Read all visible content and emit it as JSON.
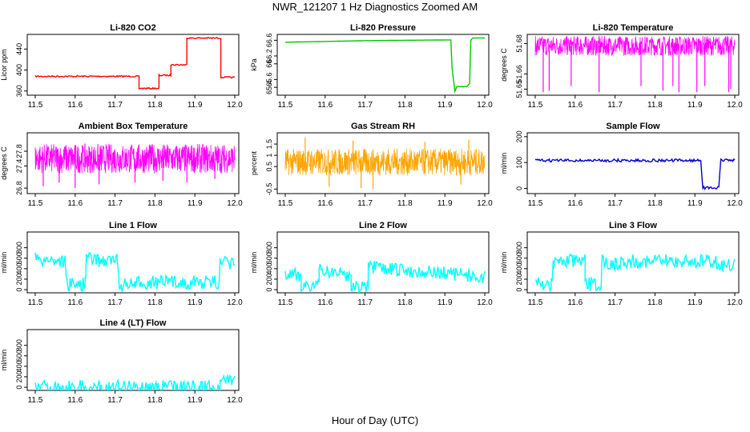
{
  "figure": {
    "title": "NWR_121207  1 Hz Diagnostics Zoomed AM",
    "xlabel": "Hour of Day (UTC)"
  },
  "chart_data": [
    {
      "type": "line",
      "title": "Li-820 CO2",
      "ylabel": "Licor ppm",
      "color": "#ff0000",
      "xlim": [
        11.48,
        12.01
      ],
      "ylim": [
        352,
        468
      ],
      "xticks": [
        11.5,
        11.6,
        11.7,
        11.8,
        11.9,
        12.0
      ],
      "yticks": [
        360,
        400,
        440
      ],
      "series": [
        {
          "x": [
            11.5,
            11.76,
            11.76,
            11.81,
            11.81,
            11.84,
            11.84,
            11.88,
            11.88,
            11.965,
            11.965,
            12.0
          ],
          "y": [
            388,
            388,
            365,
            365,
            390,
            390,
            410,
            410,
            461,
            461,
            386,
            386
          ]
        }
      ]
    },
    {
      "type": "line",
      "title": "Li-820 Pressure",
      "ylabel": "kPa",
      "color": "#00c800",
      "xlim": [
        11.48,
        12.01
      ],
      "ylim": [
        65.2,
        66.75
      ],
      "xticks": [
        11.5,
        11.6,
        11.7,
        11.8,
        11.9,
        12.0
      ],
      "yticks": [
        65.4,
        65.6,
        66.0,
        66.2,
        66.6
      ],
      "series": [
        {
          "x": [
            11.5,
            11.6,
            11.7,
            11.8,
            11.915,
            11.918,
            11.925,
            11.93,
            11.955,
            11.962,
            11.965,
            11.97,
            12.0
          ],
          "y": [
            66.55,
            66.57,
            66.59,
            66.6,
            66.61,
            65.9,
            65.3,
            65.42,
            65.42,
            65.5,
            66.6,
            66.66,
            66.66
          ]
        }
      ]
    },
    {
      "type": "line",
      "title": "Li-820 Temperature",
      "ylabel": "degrees C",
      "color": "#ff00ff",
      "xlim": [
        11.48,
        12.01
      ],
      "ylim": [
        51.646,
        51.686
      ],
      "xticks": [
        11.5,
        11.6,
        11.7,
        11.8,
        11.9,
        12.0
      ],
      "yticks": [
        51.65,
        51.66,
        51.68
      ],
      "band": {
        "low": 51.672,
        "high": 51.685
      },
      "dips": [
        [
          11.52,
          51.648
        ],
        [
          11.535,
          51.649
        ],
        [
          11.59,
          51.652
        ],
        [
          11.66,
          51.648
        ],
        [
          11.765,
          51.652
        ],
        [
          11.82,
          51.649
        ],
        [
          11.845,
          51.652
        ],
        [
          11.86,
          51.648
        ],
        [
          11.905,
          51.648
        ],
        [
          11.925,
          51.652
        ],
        [
          11.985,
          51.648
        ],
        [
          11.99,
          51.65
        ]
      ]
    },
    {
      "type": "line",
      "title": "Ambient Box Temperature",
      "ylabel": "degrees C",
      "color": "#ff00ff",
      "xlim": [
        11.48,
        12.01
      ],
      "ylim": [
        26.65,
        28.3
      ],
      "xticks": [
        11.5,
        11.6,
        11.7,
        11.8,
        11.9,
        12.0
      ],
      "yticks": [
        26.8,
        27.4,
        27.8
      ],
      "band": {
        "low": 27.2,
        "high": 28.0
      },
      "dips": [
        [
          11.52,
          26.85
        ],
        [
          11.56,
          26.95
        ],
        [
          11.6,
          26.8
        ],
        [
          11.66,
          26.9
        ],
        [
          11.75,
          26.95
        ],
        [
          11.82,
          27.0
        ],
        [
          11.88,
          26.95
        ],
        [
          11.95,
          27.05
        ]
      ]
    },
    {
      "type": "line",
      "title": "Gas Stream RH",
      "ylabel": "percent",
      "color": "#ffa500",
      "xlim": [
        11.48,
        12.01
      ],
      "ylim": [
        -0.7,
        2.0
      ],
      "xticks": [
        11.5,
        11.6,
        11.7,
        11.8,
        11.9,
        12.0
      ],
      "yticks": [
        -0.5,
        0.5,
        1.0,
        1.5
      ],
      "band": {
        "low": 0.1,
        "high": 1.3
      },
      "dips": [
        [
          11.55,
          1.8
        ],
        [
          11.61,
          -0.4
        ],
        [
          11.67,
          1.65
        ],
        [
          11.69,
          -0.45
        ],
        [
          11.72,
          -0.5
        ],
        [
          11.85,
          1.6
        ],
        [
          11.96,
          1.7
        ],
        [
          11.94,
          -0.3
        ]
      ]
    },
    {
      "type": "line",
      "title": "Sample Flow",
      "ylabel": "ml/min",
      "color": "#0000cd",
      "xlim": [
        11.48,
        12.01
      ],
      "ylim": [
        -20,
        215
      ],
      "xticks": [
        11.5,
        11.6,
        11.7,
        11.8,
        11.9,
        12.0
      ],
      "yticks": [
        0,
        100,
        200
      ],
      "series": [
        {
          "x": [
            11.5,
            11.915,
            11.92,
            11.96,
            11.965,
            12.0
          ],
          "y": [
            108,
            108,
            2,
            2,
            110,
            110
          ]
        }
      ]
    },
    {
      "type": "line",
      "title": "Line 1 Flow",
      "ylabel": "ml/min",
      "color": "#00ffff",
      "xlim": [
        11.48,
        12.01
      ],
      "ylim": [
        -60,
        1100
      ],
      "xticks": [
        11.5,
        11.6,
        11.7,
        11.8,
        11.9,
        12.0
      ],
      "yticks": [
        0,
        200,
        400,
        600,
        800
      ],
      "series": [
        {
          "x": [
            11.5,
            11.54,
            11.575,
            11.58,
            11.625,
            11.628,
            11.66,
            11.705,
            11.71,
            11.75,
            11.76,
            11.96,
            11.963,
            12.0
          ],
          "y": [
            575,
            575,
            540,
            100,
            100,
            600,
            560,
            560,
            90,
            90,
            140,
            140,
            500,
            500
          ]
        }
      ]
    },
    {
      "type": "line",
      "title": "Line 2 Flow",
      "ylabel": "ml/min",
      "color": "#00ffff",
      "xlim": [
        11.48,
        12.01
      ],
      "ylim": [
        -60,
        1100
      ],
      "xticks": [
        11.5,
        11.6,
        11.7,
        11.8,
        11.9,
        12.0
      ],
      "yticks": [
        0,
        200,
        400,
        600,
        800
      ],
      "series": [
        {
          "x": [
            11.5,
            11.54,
            11.54,
            11.585,
            11.585,
            11.665,
            11.665,
            11.708,
            11.708,
            11.965,
            11.965,
            12.0
          ],
          "y": [
            270,
            270,
            80,
            80,
            380,
            270,
            60,
            60,
            420,
            270,
            230,
            230
          ]
        }
      ]
    },
    {
      "type": "line",
      "title": "Line 3 Flow",
      "ylabel": "ml/min",
      "color": "#00ffff",
      "xlim": [
        11.48,
        12.01
      ],
      "ylim": [
        -60,
        1100
      ],
      "xticks": [
        11.5,
        11.6,
        11.7,
        11.8,
        11.9,
        12.0
      ],
      "yticks": [
        0,
        200,
        400,
        600,
        800
      ],
      "series": [
        {
          "x": [
            11.5,
            11.54,
            11.545,
            11.56,
            11.6,
            11.625,
            11.625,
            11.665,
            11.668,
            11.7,
            11.72,
            11.95,
            11.96,
            12.0
          ],
          "y": [
            100,
            100,
            480,
            560,
            540,
            540,
            100,
            100,
            560,
            470,
            540,
            540,
            470,
            470
          ]
        }
      ]
    },
    {
      "type": "line",
      "title": "Line 4 (LT) Flow",
      "ylabel": "ml/min",
      "color": "#00ffff",
      "xlim": [
        11.48,
        12.01
      ],
      "ylim": [
        -60,
        1100
      ],
      "xticks": [
        11.5,
        11.6,
        11.7,
        11.8,
        11.9,
        12.0
      ],
      "yticks": [
        0,
        200,
        400,
        600,
        800
      ],
      "series": [
        {
          "x": [
            11.5,
            11.963,
            11.965,
            12.0
          ],
          "y": [
            5,
            5,
            150,
            150
          ]
        }
      ]
    }
  ]
}
